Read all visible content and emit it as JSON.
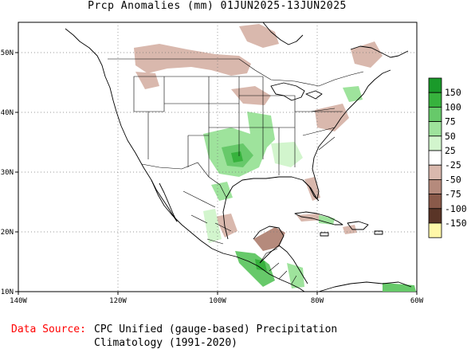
{
  "title": "Prcp Anomalies (mm) 01JUN2025-13JUN2025",
  "map": {
    "lon_range": [
      -140,
      -60
    ],
    "lat_range": [
      10,
      55
    ],
    "x_ticks": [
      "140W",
      "120W",
      "100W",
      "80W",
      "60W"
    ],
    "y_ticks": [
      "10N",
      "20N",
      "30N",
      "40N",
      "50N"
    ],
    "grid": true,
    "projection": "lat-lon"
  },
  "legend": {
    "placement": "right",
    "labels": [
      "150",
      "100",
      "75",
      "50",
      "25",
      "-25",
      "-50",
      "-75",
      "-100",
      "-150"
    ],
    "colors": [
      "#1a9a2a",
      "#37b23d",
      "#67c96a",
      "#9ee39c",
      "#d2f5cd",
      "#ffffff",
      "#d9b8ad",
      "#b58a7c",
      "#8a5a4a",
      "#5a3527",
      "#fff7a8"
    ]
  },
  "footer": {
    "source_label": "Data Source:",
    "source_text": "CPC Unified (gauge-based) Precipitation",
    "climatology": "Climatology (1991-2020)"
  }
}
